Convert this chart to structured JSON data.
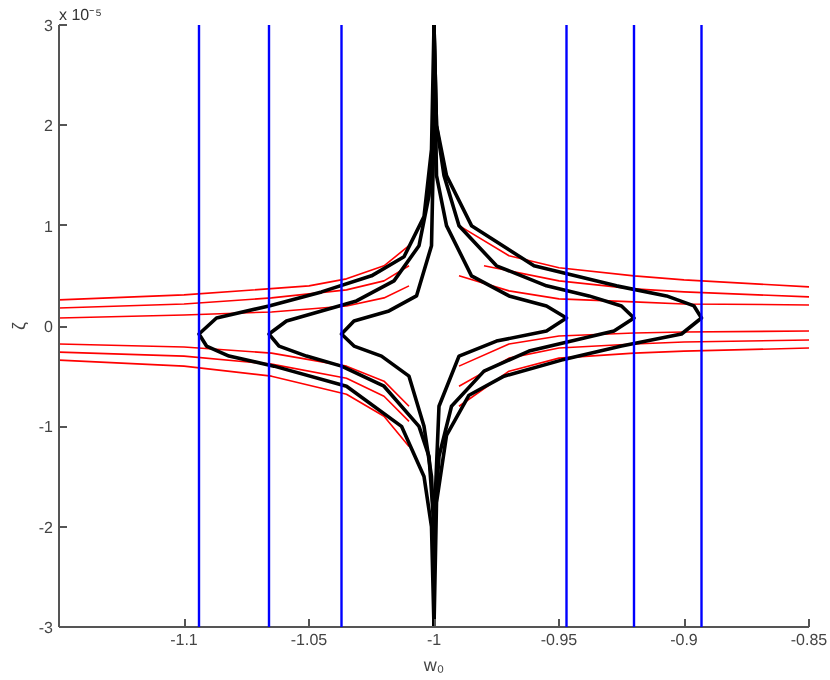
{
  "chart_data": {
    "type": "line",
    "xlabel": "w₀",
    "ylabel": "ζ",
    "annotations": [
      "x 10⁻⁵"
    ],
    "xlim": [
      -1.15,
      -0.85
    ],
    "ylim": [
      -3,
      3
    ],
    "xticks": [
      -1.1,
      -1.05,
      -1,
      -0.95,
      -0.9,
      -0.85
    ],
    "yticks": [
      -3,
      -2,
      -1,
      0,
      1,
      2,
      3
    ],
    "grid": false,
    "marker": "none",
    "line_style": "solid",
    "ref_lines": [
      {
        "axis": "x",
        "value": -1.094,
        "color": "#0000ff"
      },
      {
        "axis": "x",
        "value": -1.066,
        "color": "#0000ff"
      },
      {
        "axis": "x",
        "value": -1.037,
        "color": "#0000ff"
      },
      {
        "axis": "x",
        "value": -0.947,
        "color": "#0000ff"
      },
      {
        "axis": "x",
        "value": -0.92,
        "color": "#0000ff"
      },
      {
        "axis": "x",
        "value": -0.893,
        "color": "#0000ff"
      }
    ],
    "series": [
      {
        "color": "#ff0000",
        "x": [
          -1.15,
          -1.1,
          -1.05,
          -1.035,
          -1.02,
          -1.01
        ],
        "values": [
          0.26,
          0.31,
          0.4,
          0.47,
          0.6,
          0.8
        ]
      },
      {
        "color": "#ff0000",
        "x": [
          -0.99,
          -0.97,
          -0.95,
          -0.92,
          -0.9,
          -0.85
        ],
        "values": [
          1.0,
          0.7,
          0.58,
          0.5,
          0.46,
          0.39
        ]
      },
      {
        "color": "#ff0000",
        "x": [
          -1.15,
          -1.1,
          -1.065,
          -1.035,
          -1.02,
          -1.01
        ],
        "values": [
          0.18,
          0.22,
          0.28,
          0.36,
          0.45,
          0.6
        ]
      },
      {
        "color": "#ff0000",
        "x": [
          -0.98,
          -0.95,
          -0.92,
          -0.9,
          -0.85
        ],
        "values": [
          0.6,
          0.45,
          0.37,
          0.34,
          0.29
        ]
      },
      {
        "color": "#ff0000",
        "x": [
          -1.15,
          -1.1,
          -1.065,
          -1.035,
          -1.02,
          -1.01
        ],
        "values": [
          0.08,
          0.11,
          0.14,
          0.2,
          0.28,
          0.4
        ]
      },
      {
        "color": "#ff0000",
        "x": [
          -0.99,
          -0.97,
          -0.95,
          -0.92,
          -0.9,
          -0.85
        ],
        "values": [
          0.5,
          0.35,
          0.27,
          0.24,
          0.22,
          0.21
        ]
      },
      {
        "color": "#ff0000",
        "x": [
          -1.15,
          -1.1,
          -1.065,
          -1.035,
          -1.02,
          -1.01
        ],
        "values": [
          -0.34,
          -0.4,
          -0.5,
          -0.68,
          -0.9,
          -1.2
        ]
      },
      {
        "color": "#ff0000",
        "x": [
          -0.99,
          -0.97,
          -0.95,
          -0.92,
          -0.9,
          -0.85
        ],
        "values": [
          -0.8,
          -0.45,
          -0.32,
          -0.27,
          -0.25,
          -0.22
        ]
      },
      {
        "color": "#ff0000",
        "x": [
          -1.15,
          -1.1,
          -1.065,
          -1.035,
          -1.02,
          -1.01
        ],
        "values": [
          -0.26,
          -0.3,
          -0.38,
          -0.52,
          -0.7,
          -0.95
        ]
      },
      {
        "color": "#ff0000",
        "x": [
          -0.99,
          -0.97,
          -0.95,
          -0.92,
          -0.9,
          -0.85
        ],
        "values": [
          -0.6,
          -0.32,
          -0.22,
          -0.18,
          -0.16,
          -0.14
        ]
      },
      {
        "color": "#ff0000",
        "x": [
          -1.15,
          -1.1,
          -1.065,
          -1.035,
          -1.02,
          -1.01
        ],
        "values": [
          -0.18,
          -0.21,
          -0.27,
          -0.4,
          -0.55,
          -0.8
        ]
      },
      {
        "color": "#ff0000",
        "x": [
          -0.99,
          -0.97,
          -0.95,
          -0.92,
          -0.9,
          -0.85
        ],
        "values": [
          -0.4,
          -0.18,
          -0.1,
          -0.07,
          -0.06,
          -0.05
        ]
      },
      {
        "color": "#000000",
        "x": [
          -1.0,
          -0.999,
          -0.995,
          -0.985,
          -0.96,
          -0.927,
          -0.907,
          -0.896,
          -0.893,
          -0.901,
          -0.925,
          -0.949,
          -0.972,
          -0.986,
          -0.995,
          -0.999,
          -1.0
        ],
        "values": [
          3,
          2,
          1.5,
          1,
          0.6,
          0.4,
          0.3,
          0.2,
          0.08,
          -0.08,
          -0.2,
          -0.34,
          -0.5,
          -0.69,
          -1.09,
          -1.76,
          -3
        ]
      },
      {
        "color": "#000000",
        "x": [
          -1.0,
          -1.001,
          -1.004,
          -1.013,
          -1.035,
          -1.064,
          -1.082,
          -1.091,
          -1.094,
          -1.087,
          -1.066,
          -1.045,
          -1.025,
          -1.012,
          -1.004,
          -1.001,
          -1.0
        ],
        "values": [
          -3,
          -2,
          -1.5,
          -1,
          -0.6,
          -0.4,
          -0.3,
          -0.2,
          -0.08,
          0.08,
          0.2,
          0.34,
          0.5,
          0.69,
          1.09,
          1.76,
          3
        ]
      },
      {
        "color": "#000000",
        "x": [
          -1.0,
          -0.999,
          -0.996,
          -0.99,
          -0.975,
          -0.955,
          -0.938,
          -0.925,
          -0.92,
          -0.928,
          -0.945,
          -0.962,
          -0.98,
          -0.993,
          -0.998,
          -1.0,
          -1.0
        ],
        "values": [
          3,
          2,
          1.5,
          1,
          0.6,
          0.4,
          0.3,
          0.2,
          0.08,
          -0.05,
          -0.15,
          -0.25,
          -0.45,
          -0.8,
          -1.3,
          -2,
          -3
        ]
      },
      {
        "color": "#000000",
        "x": [
          -1.0,
          -1.0,
          -1.002,
          -1.006,
          -1.02,
          -1.037,
          -1.051,
          -1.062,
          -1.066,
          -1.059,
          -1.045,
          -1.031,
          -1.016,
          -1.006,
          -1.002,
          -1.0,
          -1.0
        ],
        "values": [
          -3,
          -2,
          -1.3,
          -1,
          -0.6,
          -0.4,
          -0.3,
          -0.2,
          -0.08,
          0.05,
          0.15,
          0.25,
          0.45,
          0.8,
          1.3,
          2,
          3
        ]
      },
      {
        "color": "#000000",
        "x": [
          -1.0,
          -0.999,
          -0.995,
          -0.985,
          -0.97,
          -0.955,
          -0.947,
          -0.955,
          -0.975,
          -0.99,
          -0.998,
          -1.0,
          -1.0
        ],
        "values": [
          3,
          1.5,
          1,
          0.5,
          0.3,
          0.2,
          0.08,
          -0.05,
          -0.15,
          -0.3,
          -0.8,
          -2,
          -3
        ]
      },
      {
        "color": "#000000",
        "x": [
          -1.0,
          -1.0,
          -1.001,
          -1.004,
          -1.01,
          -1.021,
          -1.032,
          -1.037,
          -1.032,
          -1.018,
          -1.007,
          -1.001,
          -1.0,
          -1.0
        ],
        "values": [
          -3,
          -2,
          -1.5,
          -1,
          -0.5,
          -0.3,
          -0.2,
          -0.08,
          0.05,
          0.15,
          0.3,
          0.8,
          2,
          3
        ]
      }
    ]
  }
}
